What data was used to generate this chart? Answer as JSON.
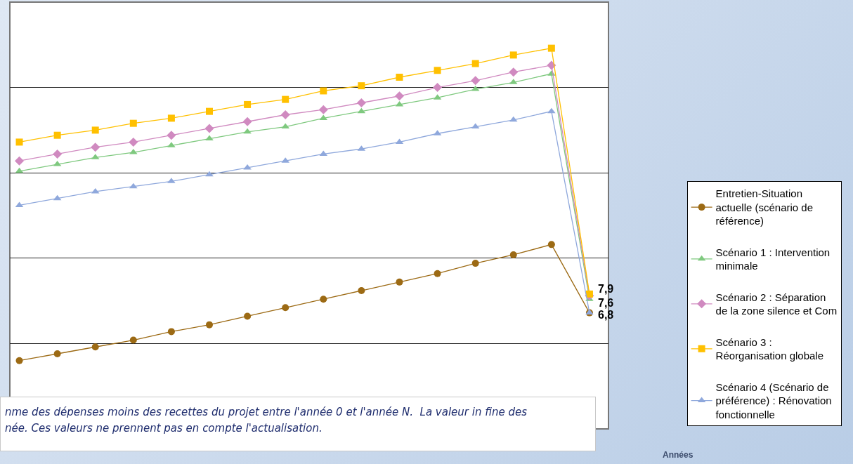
{
  "chart_data": {
    "type": "line",
    "categories": [
      null,
      null,
      null,
      null,
      null,
      null,
      null,
      null,
      null,
      null,
      null,
      null,
      null,
      null,
      null,
      null
    ],
    "ylim": [
      0,
      25
    ],
    "yticks": [
      {
        "value": 5,
        "label": null
      },
      {
        "value": 10,
        "label": null
      },
      {
        "value": 15,
        "label": null
      },
      {
        "value": 20,
        "label": null
      }
    ],
    "grid": "y",
    "legend": "right",
    "series": [
      {
        "name": "Entretien-Situation actuelle (scénario de référence)",
        "color": "#9c6a14",
        "marker": "circle",
        "values": [
          4.0,
          4.4,
          4.8,
          5.2,
          5.7,
          6.1,
          6.6,
          7.1,
          7.6,
          8.1,
          8.6,
          9.1,
          9.7,
          10.2,
          10.8,
          6.8
        ],
        "value_labels": [
          null,
          null,
          null,
          null,
          null,
          null,
          null,
          null,
          null,
          null,
          null,
          null,
          null,
          null,
          null,
          "6,8"
        ]
      },
      {
        "name": "Scénario 1 : Intervention minimale",
        "color": "#7fc97f",
        "marker": "triangle",
        "values": [
          15.1,
          15.5,
          15.9,
          16.2,
          16.6,
          17.0,
          17.4,
          17.7,
          18.2,
          18.6,
          19.0,
          19.4,
          19.9,
          20.3,
          20.8,
          7.6
        ],
        "value_labels": [
          null,
          null,
          null,
          null,
          null,
          null,
          null,
          null,
          null,
          null,
          null,
          null,
          null,
          null,
          null,
          "7,6"
        ]
      },
      {
        "name": "Scénario 2 : Séparation de la zone silence et Com",
        "color": "#d08ac0",
        "marker": "diamond",
        "values": [
          15.7,
          16.1,
          16.5,
          16.8,
          17.2,
          17.6,
          18.0,
          18.4,
          18.7,
          19.1,
          19.5,
          20.0,
          20.4,
          20.9,
          21.3,
          7.8
        ]
      },
      {
        "name": "Scénario 3 : Réorganisation globale",
        "color": "#ffc000",
        "marker": "square",
        "values": [
          16.8,
          17.2,
          17.5,
          17.9,
          18.2,
          18.6,
          19.0,
          19.3,
          19.8,
          20.1,
          20.6,
          21.0,
          21.4,
          21.9,
          22.3,
          7.9
        ],
        "value_labels": [
          null,
          null,
          null,
          null,
          null,
          null,
          null,
          null,
          null,
          null,
          null,
          null,
          null,
          null,
          null,
          "7,9"
        ]
      },
      {
        "name": "Scénario 4 (Scénario de préférence) : Rénovation fonctionnelle",
        "color": "#8fa8dc",
        "marker": "triangle",
        "values": [
          13.1,
          13.5,
          13.9,
          14.2,
          14.5,
          14.9,
          15.3,
          15.7,
          16.1,
          16.4,
          16.8,
          17.3,
          17.7,
          18.1,
          18.6,
          6.8
        ]
      }
    ],
    "annotations": [
      "nme des dépenses moins des recettes du projet entre l'année 0 et l'année N.  La valeur in fine des née. Ces valeurs ne prennent pas en compte l'actualisation.",
      "Années"
    ]
  }
}
